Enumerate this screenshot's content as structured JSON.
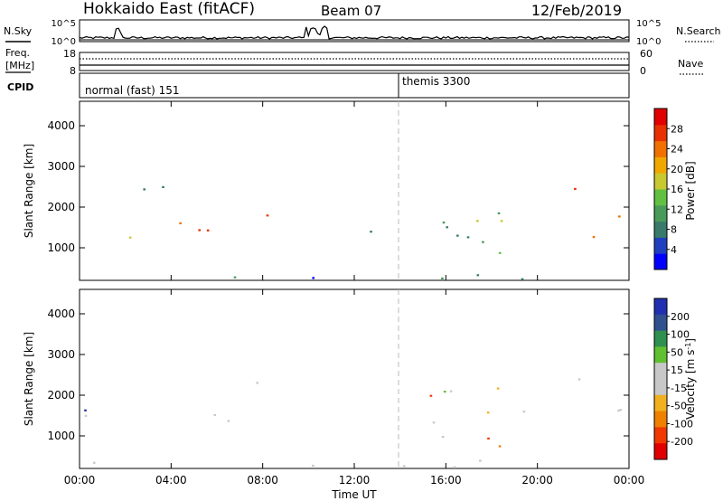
{
  "header": {
    "station": "Hokkaido East (fitACF)",
    "beam": "Beam 07",
    "date": "12/Feb/2019"
  },
  "strips": {
    "nsky_label": "N.Sky",
    "nsearch_label": "N.Search",
    "noise_tick_top": "10^5",
    "noise_tick_bottom": "10^0",
    "freq_label_1": "Freq.",
    "freq_label_2": "[MHz]",
    "freq_tick_top": "18",
    "freq_tick_bottom": "8",
    "nave_label": "Nave",
    "nave_tick_top": "60",
    "nave_tick_bottom": "0",
    "cpid_label": "CPID",
    "cpid_modes": [
      {
        "name": "normal (fast) 151",
        "start": 0
      },
      {
        "name": "themis 3300",
        "start": 14
      }
    ]
  },
  "chart_data": [
    {
      "type": "heatmap",
      "title": "",
      "xlabel": "",
      "ylabel": "Slant Range [km]",
      "xlim": [
        0,
        24
      ],
      "ylim": [
        200,
        4600
      ],
      "y_ticks": [
        "1000",
        "2000",
        "3000",
        "4000"
      ],
      "colorbar": {
        "label": "Power [dB]",
        "ticks": [
          "4",
          "8",
          "12",
          "16",
          "20",
          "24",
          "28"
        ],
        "range": [
          0,
          32
        ]
      },
      "scatter_regions": [
        {
          "t": [
            0.2,
            7.4
          ],
          "r": [
            1200,
            1700
          ],
          "level": "high"
        },
        {
          "t": [
            7.0,
            8.2
          ],
          "r": [
            1600,
            2700
          ],
          "level": "high"
        },
        {
          "t": [
            1.0,
            6.5
          ],
          "r": [
            2300,
            2700
          ],
          "level": "mid"
        },
        {
          "t": [
            0,
            24
          ],
          "r": [
            250,
            420
          ],
          "level": "low"
        },
        {
          "t": [
            9.5,
            11.0
          ],
          "r": [
            250,
            400
          ],
          "level": "high"
        },
        {
          "t": [
            15.0,
            19.5
          ],
          "r": [
            700,
            2400
          ],
          "level": "mid"
        },
        {
          "t": [
            17.0,
            19.0
          ],
          "r": [
            700,
            900
          ],
          "level": "high"
        },
        {
          "t": [
            21.5,
            23.6
          ],
          "r": [
            1200,
            2600
          ],
          "level": "high"
        },
        {
          "t": [
            12.0,
            13.5
          ],
          "r": [
            1000,
            1500
          ],
          "level": "mid"
        }
      ]
    },
    {
      "type": "heatmap",
      "title": "",
      "xlabel": "Time UT",
      "ylabel": "Slant Range [km]",
      "xlim": [
        0,
        24
      ],
      "ylim": [
        200,
        4600
      ],
      "x_ticks": [
        "00:00",
        "04:00",
        "08:00",
        "12:00",
        "16:00",
        "20:00",
        "00:00"
      ],
      "y_ticks": [
        "1000",
        "2000",
        "3000",
        "4000"
      ],
      "colorbar": {
        "label": "Velocity [m s^-1]",
        "ticks": [
          "200",
          "100",
          "50",
          "15",
          "-15",
          "-50",
          "-100",
          "-200"
        ],
        "range": [
          -250,
          250
        ]
      },
      "scatter_regions": [
        {
          "t": [
            0.2,
            7.4
          ],
          "r": [
            1200,
            1700
          ],
          "level": "ground"
        },
        {
          "t": [
            7.0,
            8.2
          ],
          "r": [
            1600,
            2700
          ],
          "level": "ground"
        },
        {
          "t": [
            0,
            24
          ],
          "r": [
            250,
            420
          ],
          "level": "ground"
        },
        {
          "t": [
            15.0,
            19.5
          ],
          "r": [
            700,
            2400
          ],
          "level": "negative"
        },
        {
          "t": [
            15.0,
            17.0
          ],
          "r": [
            1600,
            2200
          ],
          "level": "positive"
        },
        {
          "t": [
            21.5,
            23.6
          ],
          "r": [
            1200,
            2600
          ],
          "level": "ground"
        }
      ]
    }
  ],
  "colors": {
    "power": [
      "#0000ff",
      "#1f3fbf",
      "#3a7a6a",
      "#4a9a5a",
      "#62c040",
      "#c8c830",
      "#f0a800",
      "#f07000",
      "#e83000",
      "#e00000"
    ],
    "velocity": [
      "#e00000",
      "#f03800",
      "#f08000",
      "#f0b020",
      "#c8c8c8",
      "#c8c8c8",
      "#60c030",
      "#309050",
      "#305090",
      "#2030b0"
    ]
  }
}
